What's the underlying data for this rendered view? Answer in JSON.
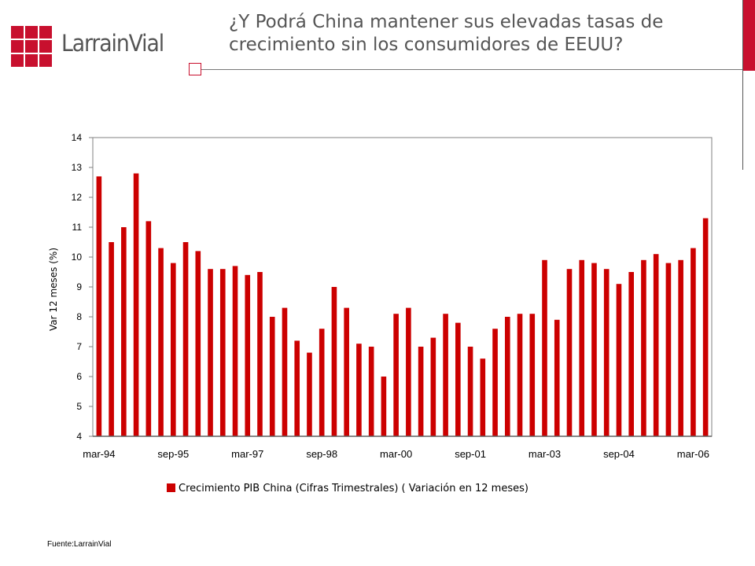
{
  "header": {
    "logo_text": "LarrainVial",
    "title_line1": "¿Y Podrá China mantener sus elevadas tasas de",
    "title_line2": "crecimiento sin los consumidores de EEUU?"
  },
  "colors": {
    "accent": "#c8102e",
    "text": "#555555",
    "bar": "#cc0000"
  },
  "chart_data": {
    "type": "bar",
    "ylabel": "Var 12 meses (%)",
    "xlabel": "",
    "ylim": [
      4,
      14
    ],
    "yticks": [
      4,
      5,
      6,
      7,
      8,
      9,
      10,
      11,
      12,
      13,
      14
    ],
    "xtick_labels": [
      "mar-94",
      "sep-95",
      "mar-97",
      "sep-98",
      "mar-00",
      "sep-01",
      "mar-03",
      "sep-04",
      "mar-06"
    ],
    "grid": false,
    "legend_position": "bottom-center",
    "series": [
      {
        "name": "Crecimiento PIB China (Cifras Trimestrales) ( Variación en 12 meses)",
        "values": [
          12.7,
          10.5,
          11.0,
          12.8,
          11.2,
          10.3,
          9.8,
          10.5,
          10.2,
          9.6,
          9.6,
          9.7,
          9.4,
          9.5,
          8.0,
          8.3,
          7.2,
          6.8,
          7.6,
          9.0,
          8.3,
          7.1,
          7.0,
          6.0,
          8.1,
          8.3,
          7.0,
          7.3,
          8.1,
          7.8,
          7.0,
          6.6,
          7.6,
          8.0,
          8.1,
          8.1,
          9.9,
          7.9,
          9.6,
          9.9,
          9.8,
          9.6,
          9.1,
          9.5,
          9.9,
          10.1,
          9.8,
          9.9,
          10.3,
          11.3
        ]
      }
    ]
  },
  "footer": {
    "source": "Fuente:LarrainVial"
  }
}
